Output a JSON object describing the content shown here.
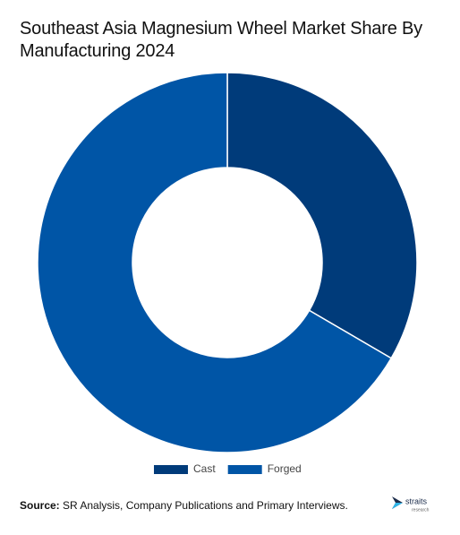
{
  "chart_data": {
    "type": "donut",
    "title": "Southeast Asia Magnesium Wheel Market Share By Manufacturing 2024",
    "categories": [
      "Cast",
      "Forged"
    ],
    "values": [
      33.4,
      66.6
    ],
    "colors": [
      "#003b7a",
      "#0055a6"
    ],
    "legend": "bottom"
  },
  "footer": {
    "source_label": "Source:",
    "source": "SR Analysis, Company Publications and Primary Interviews.",
    "logo": "straits",
    "logo_sub": "research"
  }
}
